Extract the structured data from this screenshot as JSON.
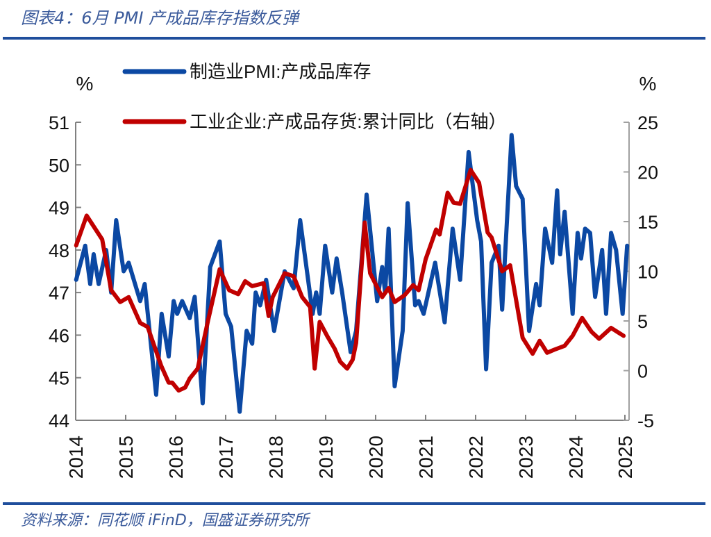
{
  "title": "图表4：6月 PMI 产成品库存指数反弹",
  "source": "资料来源：同花顺 iFinD，国盛证券研究所",
  "colors": {
    "accent": "#1f4e9c",
    "pmi": "#0b48a3",
    "inventory": "#c00000",
    "title": "#3a5a9b"
  },
  "chart_data": {
    "type": "line",
    "title": "",
    "y_left_unit": "%",
    "y_right_unit": "%",
    "y_left_lim": [
      44,
      51
    ],
    "y_right_lim": [
      -5,
      25
    ],
    "y_left_ticks": [
      "44",
      "45",
      "46",
      "47",
      "48",
      "49",
      "50",
      "51"
    ],
    "y_right_ticks": [
      "-5",
      "0",
      "5",
      "10",
      "15",
      "20",
      "25"
    ],
    "x_ticks": [
      "2014",
      "2015",
      "2016",
      "2017",
      "2018",
      "2019",
      "2020",
      "2021",
      "2022",
      "2023",
      "2024",
      "2025"
    ],
    "x_lim": [
      2014,
      2025.05
    ],
    "grid": false,
    "legend_placement": "top",
    "series": [
      {
        "name": "制造业PMI:产成品库存",
        "axis": "left",
        "color": "#0b48a3",
        "points": [
          [
            2014.01,
            47.3
          ],
          [
            2014.19,
            48.1
          ],
          [
            2014.29,
            47.2
          ],
          [
            2014.36,
            47.9
          ],
          [
            2014.46,
            47.2
          ],
          [
            2014.61,
            48.0
          ],
          [
            2014.71,
            47.0
          ],
          [
            2014.81,
            48.7
          ],
          [
            2014.96,
            47.5
          ],
          [
            2015.06,
            47.7
          ],
          [
            2015.29,
            46.8
          ],
          [
            2015.38,
            47.2
          ],
          [
            2015.61,
            44.6
          ],
          [
            2015.72,
            46.5
          ],
          [
            2015.86,
            45.5
          ],
          [
            2015.96,
            46.8
          ],
          [
            2016.03,
            46.5
          ],
          [
            2016.13,
            46.8
          ],
          [
            2016.28,
            46.4
          ],
          [
            2016.38,
            46.9
          ],
          [
            2016.54,
            44.4
          ],
          [
            2016.69,
            47.6
          ],
          [
            2016.88,
            48.2
          ],
          [
            2017.0,
            46.5
          ],
          [
            2017.11,
            46.2
          ],
          [
            2017.28,
            44.2
          ],
          [
            2017.42,
            46.1
          ],
          [
            2017.53,
            45.8
          ],
          [
            2017.6,
            47.0
          ],
          [
            2017.69,
            46.7
          ],
          [
            2017.81,
            47.3
          ],
          [
            2017.97,
            46.1
          ],
          [
            2018.18,
            47.5
          ],
          [
            2018.36,
            47.1
          ],
          [
            2018.49,
            48.7
          ],
          [
            2018.74,
            46.5
          ],
          [
            2018.81,
            47.0
          ],
          [
            2018.88,
            46.5
          ],
          [
            2018.99,
            48.1
          ],
          [
            2019.13,
            47.0
          ],
          [
            2019.22,
            47.8
          ],
          [
            2019.33,
            47.0
          ],
          [
            2019.5,
            45.6
          ],
          [
            2019.61,
            46.1
          ],
          [
            2019.82,
            49.3
          ],
          [
            2020.03,
            46.8
          ],
          [
            2020.13,
            47.6
          ],
          [
            2020.19,
            47.0
          ],
          [
            2020.26,
            48.5
          ],
          [
            2020.38,
            44.8
          ],
          [
            2020.54,
            46.1
          ],
          [
            2020.64,
            49.1
          ],
          [
            2020.79,
            46.7
          ],
          [
            2020.86,
            46.8
          ],
          [
            2020.96,
            46.5
          ],
          [
            2021.19,
            47.7
          ],
          [
            2021.38,
            46.3
          ],
          [
            2021.54,
            48.5
          ],
          [
            2021.69,
            47.3
          ],
          [
            2021.86,
            50.3
          ],
          [
            2022.03,
            48.7
          ],
          [
            2022.11,
            48.2
          ],
          [
            2022.21,
            45.2
          ],
          [
            2022.32,
            47.7
          ],
          [
            2022.46,
            48.1
          ],
          [
            2022.53,
            46.6
          ],
          [
            2022.72,
            50.7
          ],
          [
            2022.81,
            49.5
          ],
          [
            2022.94,
            49.2
          ],
          [
            2023.07,
            46.1
          ],
          [
            2023.21,
            47.2
          ],
          [
            2023.28,
            46.7
          ],
          [
            2023.39,
            48.5
          ],
          [
            2023.53,
            47.7
          ],
          [
            2023.63,
            49.4
          ],
          [
            2023.69,
            47.9
          ],
          [
            2023.78,
            48.9
          ],
          [
            2023.94,
            46.5
          ],
          [
            2024.04,
            48.4
          ],
          [
            2024.11,
            47.8
          ],
          [
            2024.19,
            48.5
          ],
          [
            2024.29,
            48.4
          ],
          [
            2024.39,
            46.9
          ],
          [
            2024.53,
            48.0
          ],
          [
            2024.61,
            46.5
          ],
          [
            2024.71,
            48.4
          ],
          [
            2024.81,
            48.0
          ],
          [
            2024.94,
            46.5
          ],
          [
            2025.03,
            48.1
          ]
        ]
      },
      {
        "name": "工业企业:产成品存货:累计同比（右轴）",
        "axis": "right",
        "color": "#c00000",
        "points": [
          [
            2014.01,
            12.6
          ],
          [
            2014.22,
            15.6
          ],
          [
            2014.53,
            13.2
          ],
          [
            2014.71,
            8.1
          ],
          [
            2014.89,
            6.9
          ],
          [
            2015.06,
            7.4
          ],
          [
            2015.29,
            4.8
          ],
          [
            2015.44,
            4.4
          ],
          [
            2015.71,
            0.5
          ],
          [
            2015.86,
            -1.2
          ],
          [
            2015.93,
            -1.2
          ],
          [
            2016.06,
            -2.0
          ],
          [
            2016.19,
            -1.7
          ],
          [
            2016.28,
            -0.8
          ],
          [
            2016.44,
            0.2
          ],
          [
            2016.65,
            5.1
          ],
          [
            2016.88,
            10.2
          ],
          [
            2017.07,
            8.1
          ],
          [
            2017.25,
            7.7
          ],
          [
            2017.39,
            9.0
          ],
          [
            2017.53,
            8.5
          ],
          [
            2017.76,
            8.8
          ],
          [
            2017.86,
            5.5
          ],
          [
            2017.94,
            7.4
          ],
          [
            2018.18,
            9.8
          ],
          [
            2018.36,
            9.5
          ],
          [
            2018.53,
            7.4
          ],
          [
            2018.69,
            6.4
          ],
          [
            2018.78,
            0.2
          ],
          [
            2018.88,
            4.9
          ],
          [
            2019.04,
            3.4
          ],
          [
            2019.18,
            2.2
          ],
          [
            2019.29,
            0.9
          ],
          [
            2019.43,
            0.2
          ],
          [
            2019.54,
            1.1
          ],
          [
            2019.61,
            2.8
          ],
          [
            2019.78,
            14.9
          ],
          [
            2019.89,
            9.8
          ],
          [
            2020.13,
            7.4
          ],
          [
            2020.26,
            8.3
          ],
          [
            2020.38,
            6.9
          ],
          [
            2020.58,
            7.6
          ],
          [
            2020.75,
            8.6
          ],
          [
            2020.86,
            8.1
          ],
          [
            2021.0,
            11.2
          ],
          [
            2021.21,
            14.2
          ],
          [
            2021.28,
            13.7
          ],
          [
            2021.44,
            17.9
          ],
          [
            2021.56,
            16.9
          ],
          [
            2021.69,
            16.8
          ],
          [
            2021.9,
            20.2
          ],
          [
            2022.07,
            18.9
          ],
          [
            2022.24,
            13.9
          ],
          [
            2022.32,
            13.4
          ],
          [
            2022.53,
            10.0
          ],
          [
            2022.69,
            10.6
          ],
          [
            2022.94,
            3.3
          ],
          [
            2023.14,
            1.7
          ],
          [
            2023.28,
            3.0
          ],
          [
            2023.43,
            1.8
          ],
          [
            2023.57,
            2.1
          ],
          [
            2023.78,
            2.5
          ],
          [
            2023.94,
            3.5
          ],
          [
            2024.13,
            5.3
          ],
          [
            2024.32,
            3.9
          ],
          [
            2024.47,
            3.2
          ],
          [
            2024.71,
            4.3
          ],
          [
            2024.96,
            3.5
          ]
        ]
      }
    ]
  }
}
